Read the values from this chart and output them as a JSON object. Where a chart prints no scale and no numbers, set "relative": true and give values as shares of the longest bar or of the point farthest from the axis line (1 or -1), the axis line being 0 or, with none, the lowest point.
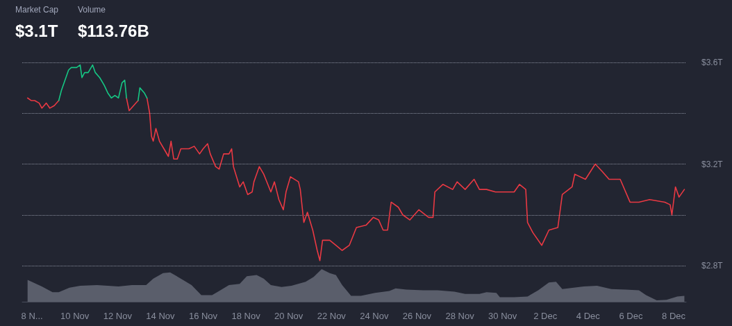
{
  "chart_data": [
    {
      "type": "line",
      "annotations": [
        "Market Cap",
        "$3.1T",
        "Volume",
        "$113.76B"
      ],
      "xlim": [
        "--11-07T13:00",
        "--12-08T14:00"
      ],
      "ylim": [
        2.8,
        3.6
      ],
      "yticks": [
        {
          "value": 2.8,
          "label": "$2.8T"
        },
        {
          "value": 3.0,
          "label": null
        },
        {
          "value": 3.2,
          "label": "$3.2T"
        },
        {
          "value": 3.4,
          "label": null
        },
        {
          "value": 3.6,
          "label": "$3.6T"
        }
      ],
      "tick_labels": "y",
      "grid": "y",
      "marker": "none",
      "line_style": "solid",
      "series": [
        {
          "color": "#ea3943",
          "x": [
            "--11-07T19:00",
            "--11-07T23:00",
            "--11-08T03:00",
            "--11-08T08:00",
            "--11-08T11:00",
            "--11-08T16:00",
            "--11-08T20:00",
            "--11-09T01:00",
            "--11-09T06:00",
            "--11-10T12:00",
            "--11-12T10:00",
            "--11-12T13:00",
            "--11-12T18:00",
            "--11-12T23:00",
            "--11-13T02:00",
            "--11-13T09:00",
            "--11-13T12:00",
            "--11-13T14:00",
            "--11-13T16:00",
            "--11-13T19:00",
            "--11-13T23:00",
            "--11-14T04:00",
            "--11-14T09:00",
            "--11-14T12:00",
            "--11-14T15:00",
            "--11-14T19:00",
            "--11-14T23:00",
            "--11-15T03:00",
            "--11-15T08:00",
            "--11-15T14:00",
            "--11-15T20:00",
            "--11-16T00:00",
            "--11-16T05:00",
            "--11-16T08:00",
            "--11-16T14:00",
            "--11-16T18:00",
            "--11-16T23:00",
            "--11-17T05:00",
            "--11-17T08:00",
            "--11-17T10:00",
            "--11-17T17:00",
            "--11-17T21:00",
            "--11-18T02:00",
            "--11-18T07:00",
            "--11-18T09:00",
            "--11-18T15:00",
            "--11-18T20:00",
            "--11-19T04:00",
            "--11-19T08:00",
            "--11-19T13:00",
            "--11-19T18:00",
            "--11-19T21:00",
            "--11-20T02:00",
            "--11-20T11:00",
            "--11-20T13:00",
            "--11-20T17:00",
            "--11-20T21:00",
            "--11-21T03:00",
            "--11-21T08:00",
            "--11-21T11:00",
            "--11-21T14:00",
            "--11-21T22:00",
            "--11-22T05:00",
            "--11-22T12:00",
            "--11-22T20:00",
            "--11-23T04:00",
            "--11-23T15:00",
            "--11-23T23:00",
            "--11-24T05:00",
            "--11-24T10:00",
            "--11-24T15:00",
            "--11-24T19:00",
            "--11-25T03:00",
            "--11-25T08:00",
            "--11-25T16:00",
            "--11-26T02:00",
            "--11-26T13:00",
            "--11-26T18:00",
            "--11-26T20:00",
            "--11-27T05:00",
            "--11-27T16:00",
            "--11-27T21:00",
            "--11-28T06:00",
            "--11-28T16:00",
            "--11-28T22:00",
            "--11-29T06:00",
            "--11-29T16:00",
            "--11-30T13:00",
            "--11-30T19:00",
            "--12-01T02:00",
            "--12-01T04:00",
            "--12-01T10:00",
            "--12-01T20:00",
            "--12-02T04:00",
            "--12-02T14:00",
            "--12-02T19:00",
            "--12-03T06:00",
            "--12-03T09:00",
            "--12-03T21:00",
            "--12-04T08:00",
            "--12-04T16:00",
            "--12-04T23:30",
            "--12-05T12:00",
            "--12-05T23:00",
            "--12-06T09:00",
            "--12-06T21:00",
            "--12-07T14:00",
            "--12-07T20:00",
            "--12-07T22:00",
            "--12-08T02:00",
            "--12-08T06:00",
            "--12-08T12:00"
          ],
          "values": [
            3.46,
            3.45,
            3.45,
            3.44,
            3.42,
            3.44,
            3.42,
            3.43,
            3.45,
            null,
            3.46,
            3.41,
            3.43,
            3.45,
            null,
            3.46,
            3.4,
            3.31,
            3.29,
            3.34,
            3.29,
            3.26,
            3.23,
            3.29,
            3.22,
            3.22,
            3.26,
            3.26,
            3.26,
            3.27,
            3.24,
            3.26,
            3.28,
            3.24,
            3.19,
            3.18,
            3.24,
            3.24,
            3.26,
            3.19,
            3.11,
            3.13,
            3.08,
            3.09,
            3.13,
            3.19,
            3.16,
            3.09,
            3.13,
            3.06,
            3.02,
            3.09,
            3.15,
            3.13,
            3.1,
            2.97,
            3.01,
            2.94,
            2.86,
            2.82,
            2.9,
            2.9,
            2.88,
            2.86,
            2.88,
            2.95,
            2.96,
            2.99,
            2.98,
            2.94,
            2.94,
            3.05,
            3.03,
            3.0,
            2.98,
            3.02,
            2.99,
            2.99,
            3.09,
            3.12,
            3.1,
            3.13,
            3.1,
            3.14,
            3.1,
            3.1,
            3.09,
            3.09,
            3.12,
            3.1,
            2.97,
            2.93,
            2.88,
            2.94,
            2.95,
            3.08,
            3.11,
            3.16,
            3.14,
            3.2,
            3.17,
            3.14,
            3.14,
            3.05,
            3.05,
            3.06,
            3.05,
            3.04,
            3.0,
            3.11,
            3.07,
            3.1
          ]
        },
        {
          "color": "#16c784",
          "x": [
            "--11-09T06:00",
            "--11-09T09:00",
            "--11-09T12:00",
            "--11-09T17:00",
            "--11-09T20:00",
            "--11-10T02:00",
            "--11-10T06:00",
            "--11-10T08:00",
            "--11-10T11:00",
            "--11-10T15:00",
            "--11-10T20:00",
            "--11-10T23:00",
            "--11-11T04:00",
            "--11-11T09:00",
            "--11-11T13:00",
            "--11-11T17:00",
            "--11-11T21:00",
            "--11-12T01:00",
            "--11-12T05:00",
            "--11-12T08:00",
            "--11-12T10:00",
            "--11-12T17:00",
            "--11-12T23:00",
            "--11-13T01:00",
            "--11-13T06:00",
            "--11-13T09:00"
          ],
          "values": [
            3.45,
            3.49,
            3.52,
            3.57,
            3.58,
            3.58,
            3.59,
            3.54,
            3.56,
            3.56,
            3.59,
            3.56,
            3.54,
            3.51,
            3.48,
            3.46,
            3.47,
            3.46,
            3.52,
            3.53,
            3.46,
            null,
            3.45,
            3.5,
            3.48,
            3.46
          ]
        }
      ]
    },
    {
      "type": "area",
      "relative": true,
      "xlim": [
        "--11-07T13:00",
        "--12-08T14:00"
      ],
      "xticks": [
        {
          "value": "--11-08",
          "label": "8 N..."
        },
        {
          "value": "--11-10",
          "label": "10 Nov"
        },
        {
          "value": "--11-12",
          "label": "12 Nov"
        },
        {
          "value": "--11-14",
          "label": "14 Nov"
        },
        {
          "value": "--11-16",
          "label": "16 Nov"
        },
        {
          "value": "--11-18",
          "label": "18 Nov"
        },
        {
          "value": "--11-20",
          "label": "20 Nov"
        },
        {
          "value": "--11-22",
          "label": "22 Nov"
        },
        {
          "value": "--11-24",
          "label": "24 Nov"
        },
        {
          "value": "--11-26",
          "label": "26 Nov"
        },
        {
          "value": "--11-28",
          "label": "28 Nov"
        },
        {
          "value": "--11-30",
          "label": "30 Nov"
        },
        {
          "value": "--12-02",
          "label": "2 Dec"
        },
        {
          "value": "--12-04",
          "label": "4 Dec"
        },
        {
          "value": "--12-06",
          "label": "6 Dec"
        },
        {
          "value": "--12-08",
          "label": "8 Dec"
        }
      ],
      "tick_labels": "x",
      "grid": false,
      "marker": "none",
      "series": [
        {
          "color": "#5a5e6b",
          "x": [
            "--11-07T19:00",
            "--11-08T11:00",
            "--11-08T23:00",
            "--11-09T06:00",
            "--11-09T18:00",
            "--11-10T06:00",
            "--11-11T01:00",
            "--11-12T01:00",
            "--11-12T16:00",
            "--11-13T08:00",
            "--11-13T16:00",
            "--11-14T03:00",
            "--11-14T11:00",
            "--11-14T23:00",
            "--11-15T11:00",
            "--11-15T22:00",
            "--11-16T10:00",
            "--11-16T18:00",
            "--11-17T05:00",
            "--11-17T17:00",
            "--11-18T01:00",
            "--11-18T12:00",
            "--11-18T20:00",
            "--11-19T04:00",
            "--11-19T16:00",
            "--11-20T03:00",
            "--11-20T19:00",
            "--11-21T04:00",
            "--11-21T13:00",
            "--11-21T22:00",
            "--11-22T05:00",
            "--11-22T12:00",
            "--11-22T22:00",
            "--11-23T09:00",
            "--11-24T01:00",
            "--11-24T17:00",
            "--11-25T00:00",
            "--11-25T12:00",
            "--11-26T07:00",
            "--11-26T23:00",
            "--11-27T18:00",
            "--11-28T06:00",
            "--11-28T22:00",
            "--11-29T06:00",
            "--11-29T17:00",
            "--11-29T21:00",
            "--11-30T13:00",
            "--12-01T04:00",
            "--12-01T16:00",
            "--12-02T04:00",
            "--12-02T12:00",
            "--12-02T19:00",
            "--12-03T19:00",
            "--12-04T10:00",
            "--12-05T02:00",
            "--12-05T18:00",
            "--12-06T09:00",
            "--12-06T17:00",
            "--12-07T05:00",
            "--12-07T16:00",
            "--12-08T04:00",
            "--12-08T12:00"
          ],
          "values": [
            0.67,
            0.47,
            0.29,
            0.29,
            0.43,
            0.49,
            0.51,
            0.47,
            0.51,
            0.51,
            0.71,
            0.88,
            0.9,
            0.71,
            0.51,
            0.2,
            0.2,
            0.33,
            0.51,
            0.55,
            0.78,
            0.82,
            0.71,
            0.51,
            0.45,
            0.49,
            0.61,
            0.76,
            1,
            0.88,
            0.82,
            0.51,
            0.18,
            0.18,
            0.27,
            0.33,
            0.41,
            0.37,
            0.35,
            0.35,
            0.31,
            0.24,
            0.24,
            0.29,
            0.27,
            0.14,
            0.14,
            0.16,
            0.35,
            0.59,
            0.61,
            0.39,
            0.47,
            0.49,
            0.39,
            0.37,
            0.35,
            0.2,
            0.04,
            0.06,
            0.16,
            0.18
          ]
        }
      ]
    }
  ]
}
